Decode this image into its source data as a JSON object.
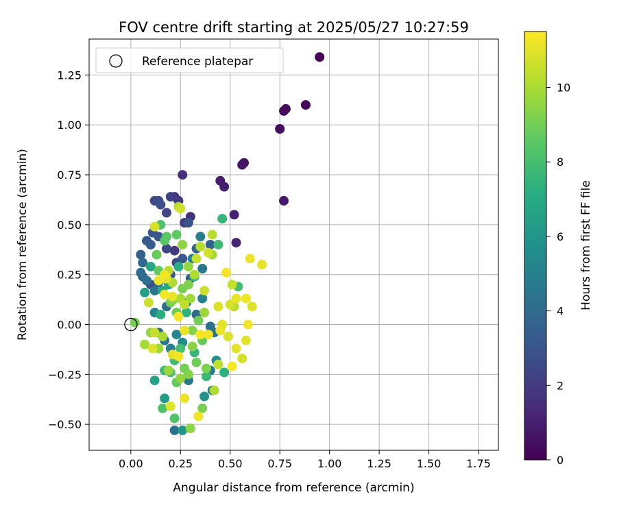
{
  "chart_data": {
    "type": "scatter",
    "title": "FOV centre drift starting at 2025/05/27 10:27:59",
    "xlabel": "Angular distance from reference (arcmin)",
    "ylabel": "Rotation from reference (arcmin)",
    "xlim": [
      -0.21,
      1.85
    ],
    "ylim": [
      -0.63,
      1.43
    ],
    "xticks": [
      "0.00",
      "0.25",
      "0.50",
      "0.75",
      "1.00",
      "1.25",
      "1.50",
      "1.75"
    ],
    "xtick_values": [
      0,
      0.25,
      0.5,
      0.75,
      1.0,
      1.25,
      1.5,
      1.75
    ],
    "yticks": [
      "−0.50",
      "−0.25",
      "0.00",
      "0.25",
      "0.50",
      "0.75",
      "1.00",
      "1.25"
    ],
    "ytick_values": [
      -0.5,
      -0.25,
      0,
      0.25,
      0.5,
      0.75,
      1.0,
      1.25
    ],
    "grid": true,
    "legend": {
      "position": "top-left",
      "label": "Reference platepar"
    },
    "reference_point": {
      "x": 0,
      "y": 0
    },
    "colorbar": {
      "label": "Hours from first FF file",
      "range": [
        0,
        11.5
      ],
      "colormap": "viridis",
      "ticks": [
        "0",
        "2",
        "4",
        "6",
        "8",
        "10"
      ],
      "tick_values": [
        0,
        2,
        4,
        6,
        8,
        10
      ]
    },
    "points": [
      [
        0.95,
        1.34,
        0.1
      ],
      [
        0.88,
        1.1,
        0.2
      ],
      [
        0.78,
        1.08,
        0.3
      ],
      [
        0.77,
        1.07,
        0.35
      ],
      [
        0.75,
        0.98,
        0.4
      ],
      [
        0.75,
        0.98,
        0.45
      ],
      [
        0.57,
        0.81,
        0.6
      ],
      [
        0.56,
        0.8,
        0.7
      ],
      [
        0.77,
        0.62,
        0.8
      ],
      [
        0.45,
        0.72,
        0.9
      ],
      [
        0.47,
        0.69,
        1.0
      ],
      [
        0.52,
        0.55,
        1.1
      ],
      [
        0.53,
        0.41,
        1.2
      ],
      [
        0.26,
        0.75,
        1.5
      ],
      [
        0.3,
        0.54,
        1.6
      ],
      [
        0.22,
        0.64,
        1.7
      ],
      [
        0.24,
        0.62,
        2.0
      ],
      [
        0.27,
        0.51,
        2.1
      ],
      [
        0.18,
        0.56,
        2.3
      ],
      [
        0.12,
        0.62,
        2.5
      ],
      [
        0.14,
        0.62,
        2.6
      ],
      [
        0.15,
        0.6,
        2.8
      ],
      [
        0.2,
        0.64,
        2.2
      ],
      [
        0.29,
        0.51,
        2.9
      ],
      [
        0.11,
        0.46,
        3.0
      ],
      [
        0.08,
        0.42,
        3.2
      ],
      [
        0.1,
        0.4,
        3.3
      ],
      [
        0.05,
        0.35,
        3.5
      ],
      [
        0.14,
        0.44,
        3.1
      ],
      [
        0.18,
        0.38,
        2.4
      ],
      [
        0.06,
        0.31,
        3.8
      ],
      [
        0.05,
        0.26,
        4.0
      ],
      [
        0.06,
        0.24,
        3.6
      ],
      [
        0.08,
        0.22,
        4.2
      ],
      [
        0.1,
        0.2,
        2.7
      ],
      [
        0.12,
        0.17,
        4.4
      ],
      [
        0.14,
        0.21,
        3.9
      ],
      [
        0.2,
        0.25,
        3.2
      ],
      [
        0.22,
        0.37,
        2.0
      ],
      [
        0.23,
        0.31,
        2.5
      ],
      [
        0.26,
        0.33,
        3.0
      ],
      [
        0.3,
        0.23,
        3.4
      ],
      [
        0.33,
        0.38,
        3.7
      ],
      [
        0.36,
        0.28,
        4.6
      ],
      [
        0.4,
        0.4,
        3.5
      ],
      [
        0.35,
        0.44,
        4.8
      ],
      [
        0.31,
        0.33,
        5.0
      ],
      [
        0.18,
        0.09,
        4.1
      ],
      [
        0.14,
        -0.04,
        4.0
      ],
      [
        0.12,
        0.06,
        5.2
      ],
      [
        0.17,
        -0.08,
        4.5
      ],
      [
        0.2,
        -0.12,
        4.9
      ],
      [
        0.23,
        -0.05,
        5.3
      ],
      [
        0.26,
        -0.09,
        5.6
      ],
      [
        0.28,
        0.11,
        4.3
      ],
      [
        0.33,
        0.05,
        3.9
      ],
      [
        0.36,
        0.13,
        5.1
      ],
      [
        0.4,
        -0.01,
        4.2
      ],
      [
        0.42,
        -0.04,
        4.4
      ],
      [
        0.43,
        -0.18,
        5.5
      ],
      [
        0.4,
        -0.23,
        4.7
      ],
      [
        0.41,
        -0.33,
        5.0
      ],
      [
        0.37,
        -0.36,
        5.8
      ],
      [
        0.29,
        -0.28,
        4.6
      ],
      [
        0.22,
        -0.53,
        4.3
      ],
      [
        0.26,
        -0.53,
        6.0
      ],
      [
        0.17,
        -0.37,
        6.3
      ],
      [
        0.12,
        -0.28,
        6.6
      ],
      [
        0.1,
        0.29,
        6.8
      ],
      [
        0.07,
        0.16,
        6.5
      ],
      [
        0.16,
        0.17,
        7.0
      ],
      [
        0.15,
        0.05,
        7.2
      ],
      [
        0.19,
        0.2,
        6.9
      ],
      [
        0.24,
        0.29,
        7.1
      ],
      [
        0.28,
        0.06,
        7.4
      ],
      [
        0.32,
        0.24,
        7.5
      ],
      [
        0.46,
        0.53,
        7.6
      ],
      [
        0.44,
        0.4,
        7.8
      ],
      [
        0.54,
        0.19,
        7.9
      ],
      [
        0.47,
        -0.24,
        7.3
      ],
      [
        0.38,
        -0.26,
        7.7
      ],
      [
        0.32,
        -0.14,
        7.6
      ],
      [
        0.25,
        -0.12,
        8.0
      ],
      [
        0.22,
        -0.18,
        7.9
      ],
      [
        0.2,
        -0.24,
        8.1
      ],
      [
        0.17,
        -0.23,
        7.8
      ],
      [
        0.16,
        -0.42,
        8.2
      ],
      [
        0.22,
        -0.47,
        8.3
      ],
      [
        0.15,
        0.5,
        8.2
      ],
      [
        0.17,
        0.42,
        8.4
      ],
      [
        0.18,
        0.44,
        8.5
      ],
      [
        0.23,
        0.45,
        8.6
      ],
      [
        0.13,
        0.35,
        8.8
      ],
      [
        0.14,
        0.27,
        8.7
      ],
      [
        0.2,
        0.11,
        9.0
      ],
      [
        0.23,
        0.06,
        8.9
      ],
      [
        0.26,
        0.18,
        9.1
      ],
      [
        0.29,
        0.2,
        9.2
      ],
      [
        0.31,
        -0.03,
        9.3
      ],
      [
        0.34,
        0.02,
        9.0
      ],
      [
        0.36,
        -0.08,
        8.8
      ],
      [
        0.31,
        -0.11,
        9.4
      ],
      [
        0.36,
        -0.42,
        9.1
      ],
      [
        0.3,
        -0.52,
        9.5
      ],
      [
        0.25,
        -0.27,
        9.6
      ],
      [
        0.29,
        -0.25,
        9.3
      ],
      [
        0.19,
        -0.23,
        9.7
      ],
      [
        0.14,
        -0.12,
        9.8
      ],
      [
        0.07,
        -0.1,
        9.9
      ],
      [
        0.1,
        -0.04,
        9.6
      ],
      [
        0.02,
        0.01,
        9.0
      ],
      [
        0.16,
        -0.06,
        10.0
      ],
      [
        0.21,
        0.21,
        10.1
      ],
      [
        0.24,
        0.59,
        10.2
      ],
      [
        0.19,
        0.27,
        10.3
      ],
      [
        0.25,
        0.13,
        10.0
      ],
      [
        0.27,
        0.1,
        10.4
      ],
      [
        0.33,
        0.33,
        10.5
      ],
      [
        0.35,
        0.39,
        10.2
      ],
      [
        0.37,
        0.17,
        10.6
      ],
      [
        0.39,
        0.36,
        10.7
      ],
      [
        0.41,
        0.45,
        10.3
      ],
      [
        0.42,
        -0.33,
        10.1
      ],
      [
        0.44,
        -0.2,
        10.4
      ],
      [
        0.51,
        0.2,
        10.5
      ],
      [
        0.5,
        0.1,
        10.8
      ],
      [
        0.52,
        0.09,
        10.2
      ],
      [
        0.49,
        -0.06,
        10.9
      ],
      [
        0.53,
        -0.12,
        11.0
      ],
      [
        0.53,
        0.13,
        11.1
      ],
      [
        0.56,
        -0.17,
        10.8
      ],
      [
        0.58,
        0.13,
        11.2
      ],
      [
        0.58,
        -0.08,
        11.0
      ],
      [
        0.59,
        0.0,
        11.3
      ],
      [
        0.6,
        0.33,
        11.2
      ],
      [
        0.61,
        0.09,
        10.9
      ],
      [
        0.66,
        0.3,
        11.1
      ],
      [
        0.51,
        -0.21,
        11.4
      ],
      [
        0.48,
        0.26,
        11.3
      ],
      [
        0.46,
        0.0,
        11.0
      ],
      [
        0.45,
        -0.03,
        11.2
      ],
      [
        0.44,
        0.09,
        10.9
      ],
      [
        0.39,
        -0.05,
        11.3
      ],
      [
        0.35,
        -0.05,
        11.4
      ],
      [
        0.34,
        -0.46,
        11.3
      ],
      [
        0.27,
        -0.37,
        11.2
      ],
      [
        0.2,
        -0.41,
        11.0
      ],
      [
        0.21,
        -0.15,
        11.1
      ],
      [
        0.24,
        -0.16,
        11.3
      ],
      [
        0.27,
        -0.03,
        11.2
      ],
      [
        0.24,
        0.04,
        11.4
      ],
      [
        0.21,
        0.14,
        11.1
      ],
      [
        0.17,
        0.25,
        11.3
      ],
      [
        0.18,
        0.23,
        11.0
      ],
      [
        0.14,
        0.22,
        11.2
      ],
      [
        0.17,
        0.15,
        11.4
      ],
      [
        0.12,
        0.49,
        10.8
      ],
      [
        0.25,
        0.58,
        10.7
      ],
      [
        0.09,
        0.11,
        10.6
      ],
      [
        0.11,
        -0.12,
        10.9
      ],
      [
        0.12,
        -0.04,
        10.5
      ],
      [
        0.32,
        0.25,
        10.1
      ],
      [
        0.41,
        0.35,
        9.9
      ],
      [
        0.37,
        0.06,
        9.7
      ],
      [
        0.38,
        -0.22,
        9.2
      ],
      [
        0.33,
        -0.19,
        8.9
      ],
      [
        0.23,
        -0.29,
        8.7
      ],
      [
        0.27,
        -0.22,
        9.0
      ],
      [
        0.26,
        0.4,
        9.5
      ],
      [
        0.29,
        0.29,
        9.6
      ],
      [
        0.3,
        0.13,
        9.8
      ],
      [
        0.21,
        0.12,
        9.4
      ]
    ]
  }
}
